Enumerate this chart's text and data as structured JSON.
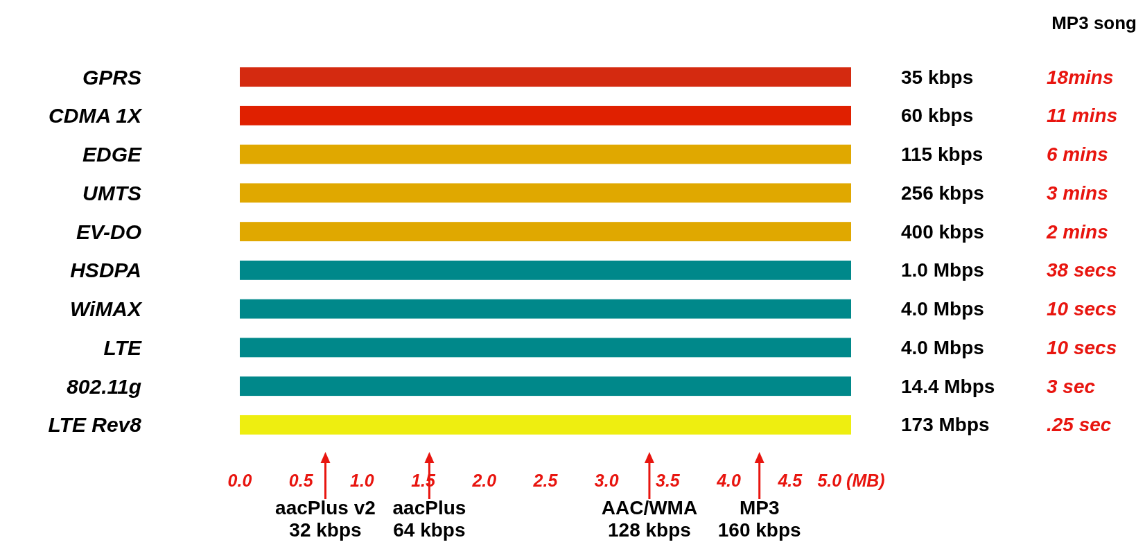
{
  "chart_data": {
    "type": "bar",
    "orientation": "horizontal",
    "subtitle": "MP3 song",
    "categories": [
      "GPRS",
      "CDMA 1X",
      "EDGE",
      "UMTS",
      "EV-DO",
      "HSDPA",
      "WiMAX",
      "LTE",
      "802.11g",
      "LTE Rev8"
    ],
    "values": [
      5.0,
      5.0,
      5.0,
      5.0,
      5.0,
      5.0,
      5.0,
      5.0,
      5.0,
      5.0
    ],
    "colors": [
      "#d42a10",
      "#e02000",
      "#e0a800",
      "#e0a800",
      "#e0a800",
      "#00888a",
      "#00888a",
      "#00888a",
      "#00888a",
      "#eeee10"
    ],
    "xlim": [
      0,
      5
    ],
    "xticks": [
      {
        "value": 0,
        "label": "0.0"
      },
      {
        "value": 0.5,
        "label": "0.5"
      },
      {
        "value": 1,
        "label": "1.0"
      },
      {
        "value": 1.5,
        "label": "1.5"
      },
      {
        "value": 2,
        "label": "2.0"
      },
      {
        "value": 2.5,
        "label": "2.5"
      },
      {
        "value": 3,
        "label": "3.0"
      },
      {
        "value": 3.5,
        "label": "3.5"
      },
      {
        "value": 4,
        "label": "4.0"
      },
      {
        "value": 4.5,
        "label": "4.5"
      },
      {
        "value": 5,
        "label": "5.0 (MB)"
      }
    ],
    "ref_lines": [
      {
        "axis": "x",
        "value": 0.7,
        "label": "aacPlus v2\n32 kbps",
        "color": "#e8150f"
      },
      {
        "axis": "x",
        "value": 1.55,
        "label": "aacPlus\n64 kbps",
        "color": "#e8150f"
      },
      {
        "axis": "x",
        "value": 3.35,
        "label": "AAC/WMA\n128 kbps",
        "color": "#e8150f"
      },
      {
        "axis": "x",
        "value": 4.25,
        "label": "MP3\n160 kbps",
        "color": "#e8150f"
      }
    ],
    "annotations": [
      "35 kbps",
      "60 kbps",
      "115 kbps",
      "256 kbps",
      "400 kbps",
      "1.0 Mbps",
      "4.0 Mbps",
      "4.0 Mbps",
      "14.4 Mbps",
      "173 Mbps",
      "18mins",
      "11 mins",
      "6 mins",
      "3 mins",
      "2 mins",
      "38 secs",
      "10 secs",
      "10 secs",
      "3 sec",
      ".25 sec"
    ]
  }
}
